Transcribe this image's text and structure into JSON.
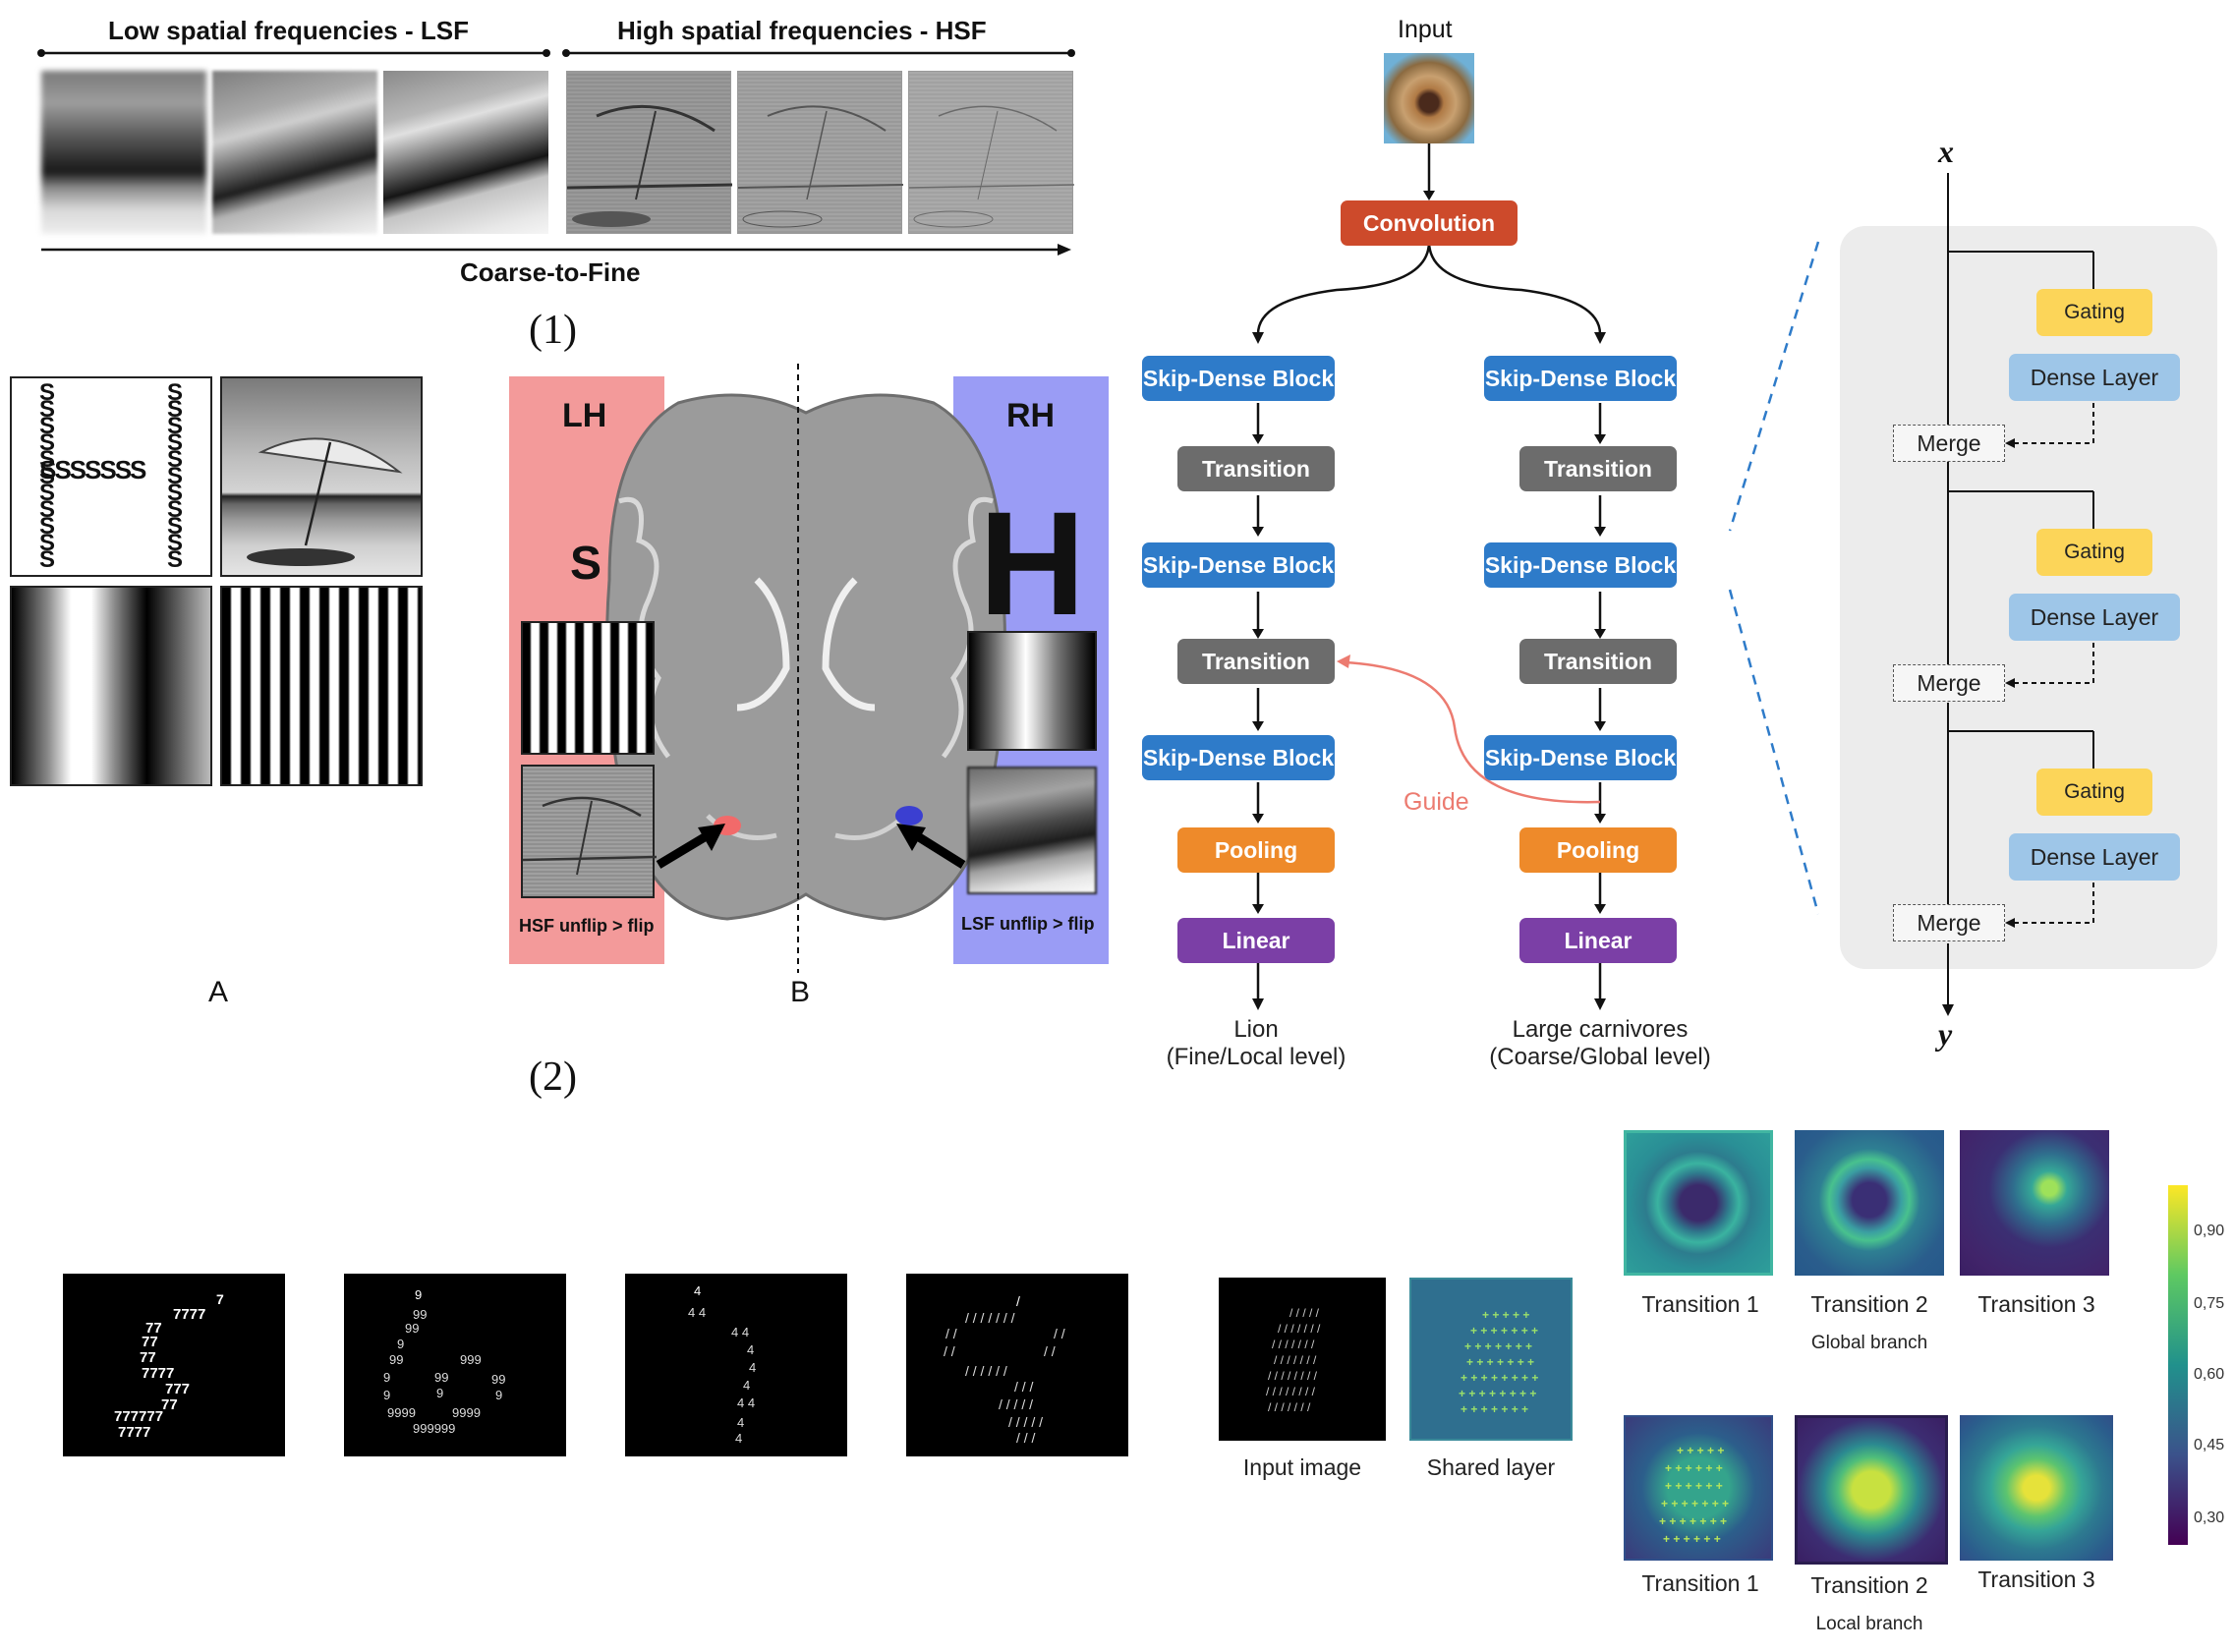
{
  "panel1": {
    "lsf_header": "Low spatial frequencies - LSF",
    "hsf_header": "High spatial frequencies - HSF",
    "axis_label": "Coarse-to-Fine",
    "number": "(1)"
  },
  "panel2": {
    "number": "(2)",
    "label_a": "A",
    "label_b": "B",
    "hierarchical_letter_big": "H",
    "hierarchical_letter_small": "S",
    "lh": "LH",
    "rh": "RH",
    "left_letter": "S",
    "right_letter": "H",
    "hsf_caption": "HSF unflip > flip",
    "lsf_caption": "LSF unflip > flip"
  },
  "network": {
    "input": "Input",
    "convolution": "Convolution",
    "skip_dense": "Skip-Dense Block",
    "transition": "Transition",
    "pooling": "Pooling",
    "linear": "Linear",
    "guide": "Guide",
    "left_out_1": "Lion",
    "left_out_2": "(Fine/Local level)",
    "right_out_1": "Large carnivores",
    "right_out_2": "(Coarse/Global level)"
  },
  "block_detail": {
    "x": "x",
    "y": "y",
    "gating": "Gating",
    "dense": "Dense Layer",
    "merge": "Merge"
  },
  "digits": {
    "glyphs": [
      "7",
      "9",
      "4",
      "/"
    ]
  },
  "heatmaps": {
    "input_image": "Input image",
    "shared_layer": "Shared layer",
    "t1": "Transition 1",
    "t2": "Transition 2",
    "t3": "Transition 3",
    "global_branch": "Global branch",
    "local_branch": "Local branch",
    "colorbar_ticks": [
      "0,90",
      "0,75",
      "0,60",
      "0,45",
      "0,30"
    ]
  },
  "colors": {
    "convolution": "#cd4a2b",
    "skip_dense": "#2e7bc9",
    "transition": "#6c6c6c",
    "pooling": "#ee8a2a",
    "linear": "#7b3fa6",
    "gating": "#fcd559",
    "dense": "#9ec6e8",
    "guide": "#ec7b70",
    "lh": "#f28b8b",
    "rh": "#8a8cf2"
  }
}
